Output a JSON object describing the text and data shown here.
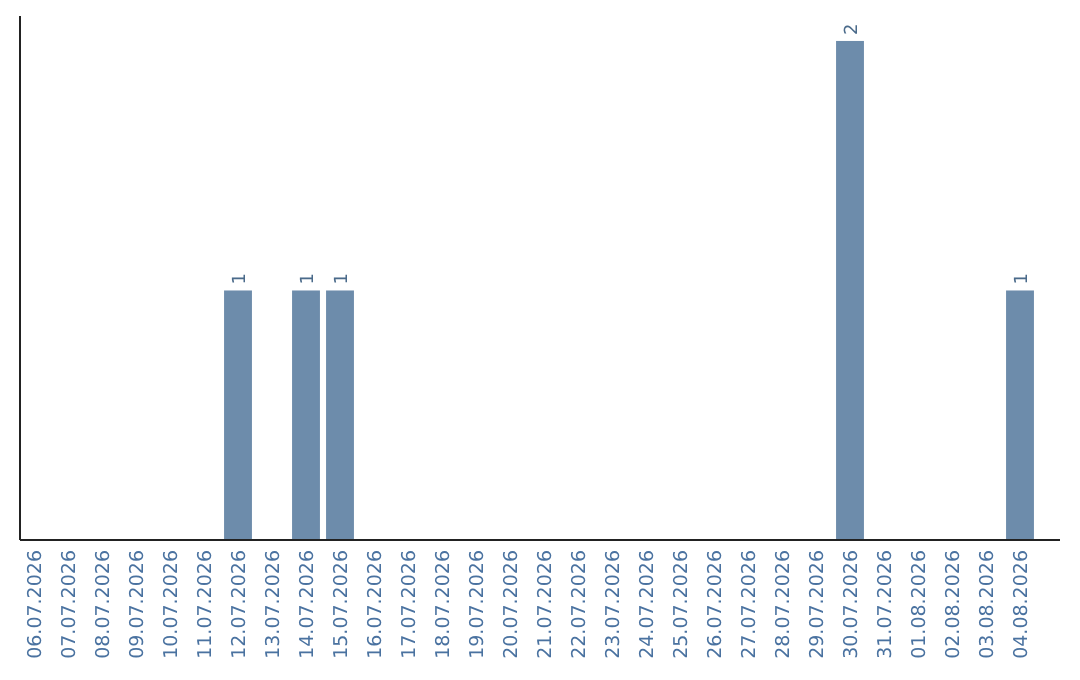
{
  "chart_data": {
    "type": "bar",
    "categories": [
      "06.07.2026",
      "07.07.2026",
      "08.07.2026",
      "09.07.2026",
      "10.07.2026",
      "11.07.2026",
      "12.07.2026",
      "13.07.2026",
      "14.07.2026",
      "15.07.2026",
      "16.07.2026",
      "17.07.2026",
      "18.07.2026",
      "19.07.2026",
      "20.07.2026",
      "21.07.2026",
      "22.07.2026",
      "23.07.2026",
      "24.07.2026",
      "25.07.2026",
      "26.07.2026",
      "27.07.2026",
      "28.07.2026",
      "29.07.2026",
      "30.07.2026",
      "31.07.2026",
      "01.08.2026",
      "02.08.2026",
      "03.08.2026",
      "04.08.2026"
    ],
    "values": [
      0,
      0,
      0,
      0,
      0,
      0,
      1,
      0,
      1,
      1,
      0,
      0,
      0,
      0,
      0,
      0,
      0,
      0,
      0,
      0,
      0,
      0,
      0,
      0,
      2,
      0,
      0,
      0,
      0,
      1
    ],
    "value_labels": [
      null,
      null,
      null,
      null,
      null,
      null,
      "1",
      null,
      "1",
      "1",
      null,
      null,
      null,
      null,
      null,
      null,
      null,
      null,
      null,
      null,
      null,
      null,
      null,
      null,
      "2",
      null,
      null,
      null,
      null,
      "1"
    ],
    "color": "#6d8cab",
    "ylim": [
      0,
      2.1
    ],
    "tick_labels": "x"
  }
}
